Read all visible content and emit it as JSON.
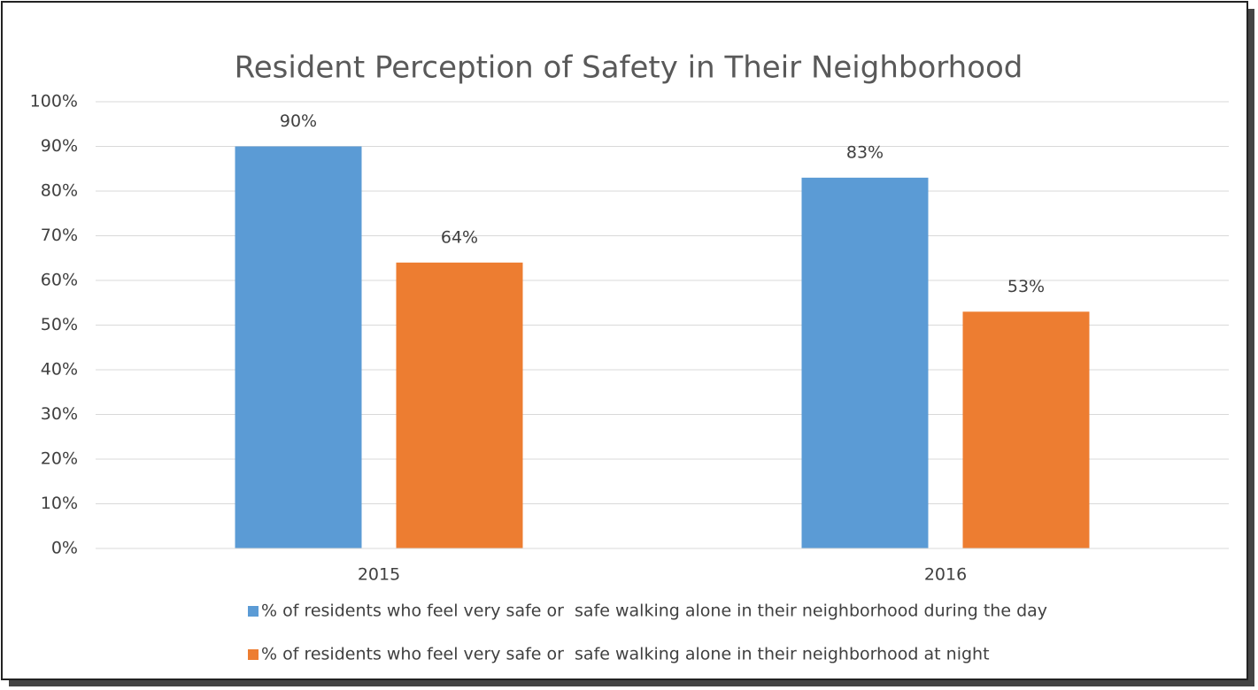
{
  "chart_data": {
    "type": "bar",
    "title": "Resident Perception of Safety in Their Neighborhood",
    "categories": [
      "2015",
      "2016"
    ],
    "series": [
      {
        "name": "% of residents who feel very safe or  safe walking alone in their neighborhood during the day",
        "color": "#5b9bd5",
        "values": [
          90,
          83
        ],
        "value_labels": [
          "90%",
          "83%"
        ]
      },
      {
        "name": "% of residents who feel very safe or  safe walking alone in their neighborhood at night",
        "color": "#ed7d31",
        "values": [
          64,
          53
        ],
        "value_labels": [
          "64%",
          "53%"
        ]
      }
    ],
    "ylim": [
      0,
      100
    ],
    "yticks": [
      {
        "value": 0,
        "label": "0%"
      },
      {
        "value": 10,
        "label": "10%"
      },
      {
        "value": 20,
        "label": "20%"
      },
      {
        "value": 30,
        "label": "30%"
      },
      {
        "value": 40,
        "label": "40%"
      },
      {
        "value": 50,
        "label": "50%"
      },
      {
        "value": 60,
        "label": "60%"
      },
      {
        "value": 70,
        "label": "70%"
      },
      {
        "value": 80,
        "label": "80%"
      },
      {
        "value": 90,
        "label": "90%"
      },
      {
        "value": 100,
        "label": "100%"
      }
    ],
    "grid": true,
    "legend": "bottom"
  }
}
